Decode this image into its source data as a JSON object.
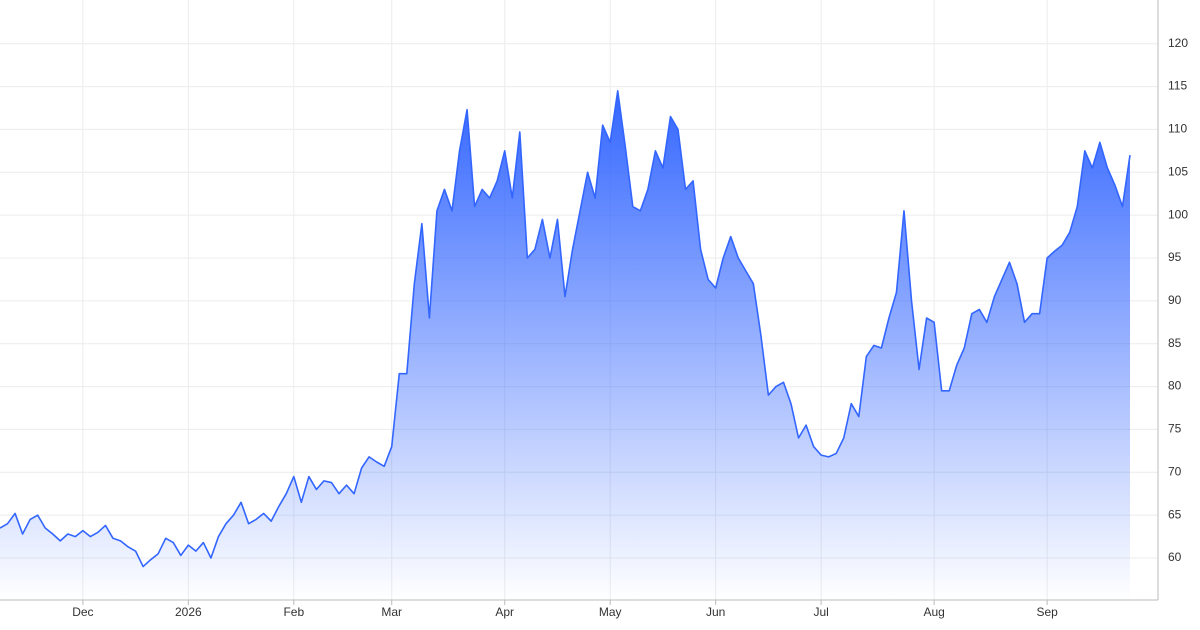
{
  "chart_data": {
    "type": "area",
    "categories": [
      null,
      null,
      null,
      null,
      null,
      null,
      null,
      null,
      null,
      null,
      null,
      "Dec",
      null,
      null,
      null,
      null,
      null,
      null,
      null,
      null,
      null,
      null,
      null,
      null,
      null,
      "2026",
      null,
      null,
      null,
      null,
      null,
      null,
      null,
      null,
      null,
      null,
      null,
      null,
      null,
      "Feb",
      null,
      null,
      null,
      null,
      null,
      null,
      null,
      null,
      null,
      null,
      null,
      null,
      "Mar",
      null,
      null,
      null,
      null,
      null,
      null,
      null,
      null,
      null,
      null,
      null,
      null,
      null,
      null,
      "Apr",
      null,
      null,
      null,
      null,
      null,
      null,
      null,
      null,
      null,
      null,
      null,
      null,
      null,
      "May",
      null,
      null,
      null,
      null,
      null,
      null,
      null,
      null,
      null,
      null,
      null,
      null,
      null,
      "Jun",
      null,
      null,
      null,
      null,
      null,
      null,
      null,
      null,
      null,
      null,
      null,
      null,
      null,
      "Jul",
      null,
      null,
      null,
      null,
      null,
      null,
      null,
      null,
      null,
      null,
      null,
      null,
      null,
      null,
      "Aug",
      null,
      null,
      null,
      null,
      null,
      null,
      null,
      null,
      null,
      null,
      null,
      null,
      null,
      null,
      "Sep",
      null,
      null,
      null,
      null,
      null,
      null,
      null,
      null,
      null,
      null,
      null
    ],
    "values": [
      63.5,
      64,
      65.2,
      62.8,
      64.5,
      65,
      63.5,
      62.8,
      62,
      62.8,
      62.5,
      63.2,
      62.5,
      63,
      63.8,
      62.3,
      62,
      61.3,
      60.8,
      59,
      59.8,
      60.5,
      62.3,
      61.8,
      60.3,
      61.5,
      60.8,
      61.8,
      60,
      62.5,
      64,
      65,
      66.5,
      64,
      64.5,
      65.2,
      64.3,
      66,
      67.5,
      69.5,
      66.5,
      69.5,
      68,
      69,
      68.8,
      67.5,
      68.5,
      67.5,
      70.5,
      71.8,
      71.2,
      70.7,
      73,
      81.5,
      81.5,
      92,
      99,
      88,
      100.5,
      103,
      100.5,
      107.5,
      112.3,
      101,
      103,
      102,
      104,
      107.5,
      102,
      109.7,
      95,
      96,
      99.5,
      95,
      99.5,
      90.5,
      96,
      100.5,
      105,
      102,
      110.5,
      108.5,
      114.5,
      108,
      101,
      100.5,
      103,
      107.5,
      105.5,
      111.5,
      110,
      103,
      104,
      96,
      92.5,
      91.5,
      95,
      97.5,
      95,
      93.5,
      92,
      86,
      79,
      80,
      80.5,
      78,
      74,
      75.5,
      73,
      72,
      71.8,
      72.2,
      74,
      78,
      76.5,
      83.5,
      84.8,
      84.5,
      88,
      91,
      100.5,
      90,
      82,
      88,
      87.5,
      79.5,
      79.5,
      82.5,
      84.5,
      88.5,
      89,
      87.5,
      90.5,
      92.5,
      94.5,
      92,
      87.5,
      88.5,
      88.5,
      95,
      95.8,
      96.5,
      98,
      101,
      107.5,
      105.5,
      108.5,
      105.5,
      103.5,
      101,
      107
    ],
    "color": "#3366ff",
    "ylim": [
      55.1,
      125.1
    ],
    "yticks": [
      60,
      65,
      70,
      75,
      80,
      85,
      90,
      95,
      100,
      105,
      110,
      115,
      120
    ],
    "grid": true,
    "y_axis_side": "right"
  }
}
